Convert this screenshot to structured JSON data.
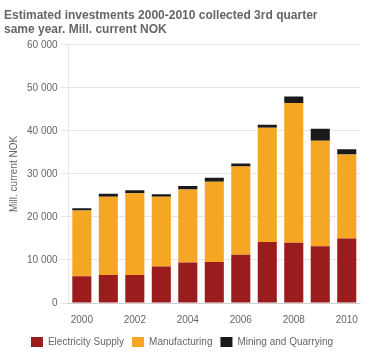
{
  "chart_data": {
    "type": "bar",
    "stacked": true,
    "title": "Estimated investments 2000-2010 collected 3rd quarter\nsame year. Mill. current NOK",
    "ylabel": "Mill. current NOK",
    "categories": [
      "2000",
      null,
      "2002",
      null,
      "2004",
      null,
      "2006",
      null,
      "2008",
      null,
      "2010"
    ],
    "series": [
      {
        "name": "Electricity Supply",
        "color": "#9b1c1c",
        "values": [
          6200,
          6500,
          6500,
          8500,
          9400,
          9500,
          11200,
          14200,
          14000,
          13200,
          15000
        ]
      },
      {
        "name": "Manufacturing",
        "color": "#f5a623",
        "values": [
          15300,
          18200,
          19000,
          16200,
          17000,
          18700,
          20500,
          26500,
          32500,
          24500,
          19500
        ]
      },
      {
        "name": "Mining and Quarrying",
        "color": "#1a1a1a",
        "values": [
          500,
          700,
          700,
          600,
          800,
          900,
          700,
          700,
          1500,
          2800,
          1200
        ]
      }
    ],
    "ylim": [
      0,
      60000
    ],
    "yticks": [
      0,
      {
        "value": 10000,
        "label": "10 000"
      },
      {
        "value": 20000,
        "label": "20 000"
      },
      {
        "value": 30000,
        "label": "30 000"
      },
      {
        "value": 40000,
        "label": "40 000"
      },
      {
        "value": 50000,
        "label": "50 000"
      },
      {
        "value": 60000,
        "label": "60 000"
      }
    ],
    "grid": true,
    "legend": "bottom"
  }
}
